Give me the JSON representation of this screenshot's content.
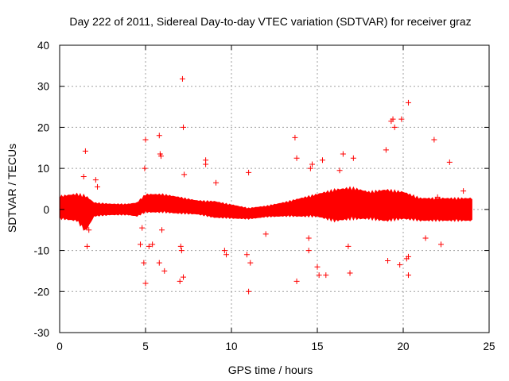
{
  "chart_data": {
    "type": "scatter",
    "title": "Day 222 of 2011, Sidereal Day-to-day VTEC variation (SDTVAR) for receiver graz",
    "xlabel": "GPS time / hours",
    "ylabel": "SDTVAR / TECUs",
    "xlim": [
      0,
      25
    ],
    "ylim": [
      -30,
      40
    ],
    "xticks": [
      0,
      5,
      10,
      15,
      20,
      25
    ],
    "yticks": [
      -30,
      -20,
      -10,
      0,
      10,
      20,
      30,
      40
    ],
    "xtick_labels": [
      "0",
      "5",
      "10",
      "15",
      "20",
      "25"
    ],
    "ytick_labels": [
      "-30",
      "-20",
      "-10",
      "0",
      "10",
      "20",
      "30",
      "40"
    ],
    "grid": true,
    "marker": "+",
    "color": "#ff0000",
    "dense_band": {
      "x_range": [
        0,
        24
      ],
      "center": [
        [
          0,
          0.5
        ],
        [
          1,
          0.5
        ],
        [
          1.5,
          -1
        ],
        [
          2,
          0
        ],
        [
          3,
          0
        ],
        [
          4,
          0
        ],
        [
          4.5,
          0
        ],
        [
          5,
          1.5
        ],
        [
          6,
          1.5
        ],
        [
          7,
          1
        ],
        [
          8,
          0.5
        ],
        [
          9,
          0
        ],
        [
          10,
          -0.5
        ],
        [
          11,
          -1
        ],
        [
          12,
          -0.5
        ],
        [
          13,
          0
        ],
        [
          14,
          0.5
        ],
        [
          15,
          1
        ],
        [
          16,
          1
        ],
        [
          17,
          1.5
        ],
        [
          18,
          1
        ],
        [
          19,
          1
        ],
        [
          20,
          1
        ],
        [
          21,
          0
        ],
        [
          22,
          0
        ],
        [
          23,
          0
        ],
        [
          24,
          0
        ]
      ],
      "half_width": [
        [
          0,
          2.5
        ],
        [
          1,
          3
        ],
        [
          1.5,
          4
        ],
        [
          2,
          1.5
        ],
        [
          3,
          1.2
        ],
        [
          4,
          1.2
        ],
        [
          4.5,
          1.5
        ],
        [
          5,
          2
        ],
        [
          6,
          2
        ],
        [
          7,
          1.8
        ],
        [
          8,
          1.5
        ],
        [
          9,
          1.8
        ],
        [
          10,
          1.5
        ],
        [
          11,
          1.2
        ],
        [
          12,
          1.2
        ],
        [
          13,
          1.5
        ],
        [
          14,
          2
        ],
        [
          15,
          2.5
        ],
        [
          16,
          3.5
        ],
        [
          17,
          3.5
        ],
        [
          18,
          3
        ],
        [
          19,
          3.5
        ],
        [
          20,
          3
        ],
        [
          21,
          2.5
        ],
        [
          22,
          2.5
        ],
        [
          23,
          2.5
        ],
        [
          24,
          2.5
        ]
      ]
    },
    "outliers": [
      [
        1.5,
        14.2
      ],
      [
        1.6,
        -9.0
      ],
      [
        1.7,
        -5.0
      ],
      [
        1.4,
        8.0
      ],
      [
        2.1,
        7.2
      ],
      [
        2.2,
        5.5
      ],
      [
        4.7,
        -8.5
      ],
      [
        4.8,
        -4.5
      ],
      [
        4.9,
        -13.0
      ],
      [
        4.95,
        10.0
      ],
      [
        5.0,
        17.0
      ],
      [
        5.0,
        -18.0
      ],
      [
        5.2,
        -9.0
      ],
      [
        5.4,
        -8.5
      ],
      [
        5.8,
        18.0
      ],
      [
        5.85,
        13.5
      ],
      [
        5.9,
        13.0
      ],
      [
        5.8,
        -13.0
      ],
      [
        5.95,
        -5.0
      ],
      [
        6.1,
        -15.0
      ],
      [
        7.0,
        -17.5
      ],
      [
        7.05,
        -9.0
      ],
      [
        7.1,
        -10.0
      ],
      [
        7.15,
        31.8
      ],
      [
        7.2,
        20.0
      ],
      [
        7.25,
        8.5
      ],
      [
        7.2,
        -16.5
      ],
      [
        8.5,
        12.0
      ],
      [
        8.5,
        11.0
      ],
      [
        9.1,
        6.5
      ],
      [
        9.6,
        -10.0
      ],
      [
        9.7,
        -11.0
      ],
      [
        10.9,
        -11.0
      ],
      [
        11.0,
        -20.0
      ],
      [
        11.0,
        9.0
      ],
      [
        11.1,
        -13.0
      ],
      [
        12.0,
        -6.0
      ],
      [
        13.7,
        17.5
      ],
      [
        13.8,
        12.5
      ],
      [
        13.8,
        -17.5
      ],
      [
        14.5,
        -7.0
      ],
      [
        14.5,
        -10.0
      ],
      [
        14.6,
        10.0
      ],
      [
        14.7,
        11.0
      ],
      [
        15.0,
        -14.0
      ],
      [
        15.1,
        -16.0
      ],
      [
        15.3,
        12.0
      ],
      [
        15.5,
        -16.0
      ],
      [
        16.3,
        9.5
      ],
      [
        16.5,
        13.5
      ],
      [
        16.8,
        -9.0
      ],
      [
        16.9,
        -15.5
      ],
      [
        17.1,
        12.5
      ],
      [
        19.0,
        14.5
      ],
      [
        19.1,
        -12.5
      ],
      [
        19.3,
        21.5
      ],
      [
        19.4,
        22.0
      ],
      [
        19.5,
        20.0
      ],
      [
        19.9,
        22.0
      ],
      [
        19.8,
        -13.5
      ],
      [
        20.2,
        -12.0
      ],
      [
        20.3,
        26.0
      ],
      [
        20.3,
        -11.5
      ],
      [
        20.3,
        -16.0
      ],
      [
        21.3,
        -7.0
      ],
      [
        21.8,
        17.0
      ],
      [
        22.0,
        3.0
      ],
      [
        22.2,
        -8.5
      ],
      [
        22.7,
        11.5
      ],
      [
        23.5,
        4.5
      ]
    ]
  }
}
